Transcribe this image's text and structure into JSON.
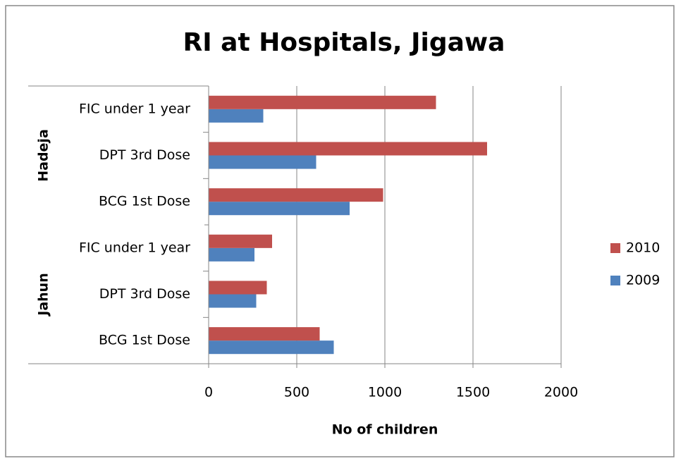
{
  "chart_data": {
    "type": "bar",
    "orientation": "horizontal",
    "title": "RI at Hospitals, Jigawa",
    "xlabel": "No of children",
    "groups": [
      {
        "name": "Jahun",
        "categories": [
          "BCG 1st Dose",
          "DPT 3rd Dose",
          "FIC under 1 year"
        ]
      },
      {
        "name": "Hadeja",
        "categories": [
          "BCG 1st Dose",
          "DPT 3rd Dose",
          "FIC under 1 year"
        ]
      }
    ],
    "series": [
      {
        "name": "2009",
        "color": "#4f81bd",
        "values": [
          710,
          270,
          260,
          800,
          610,
          310
        ]
      },
      {
        "name": "2010",
        "color": "#c0504d",
        "values": [
          630,
          330,
          360,
          990,
          1580,
          1290
        ]
      }
    ],
    "xlim": [
      0,
      2000
    ],
    "xticks": [
      0,
      500,
      1000,
      1500,
      2000
    ],
    "grid": true,
    "legend": "right"
  }
}
